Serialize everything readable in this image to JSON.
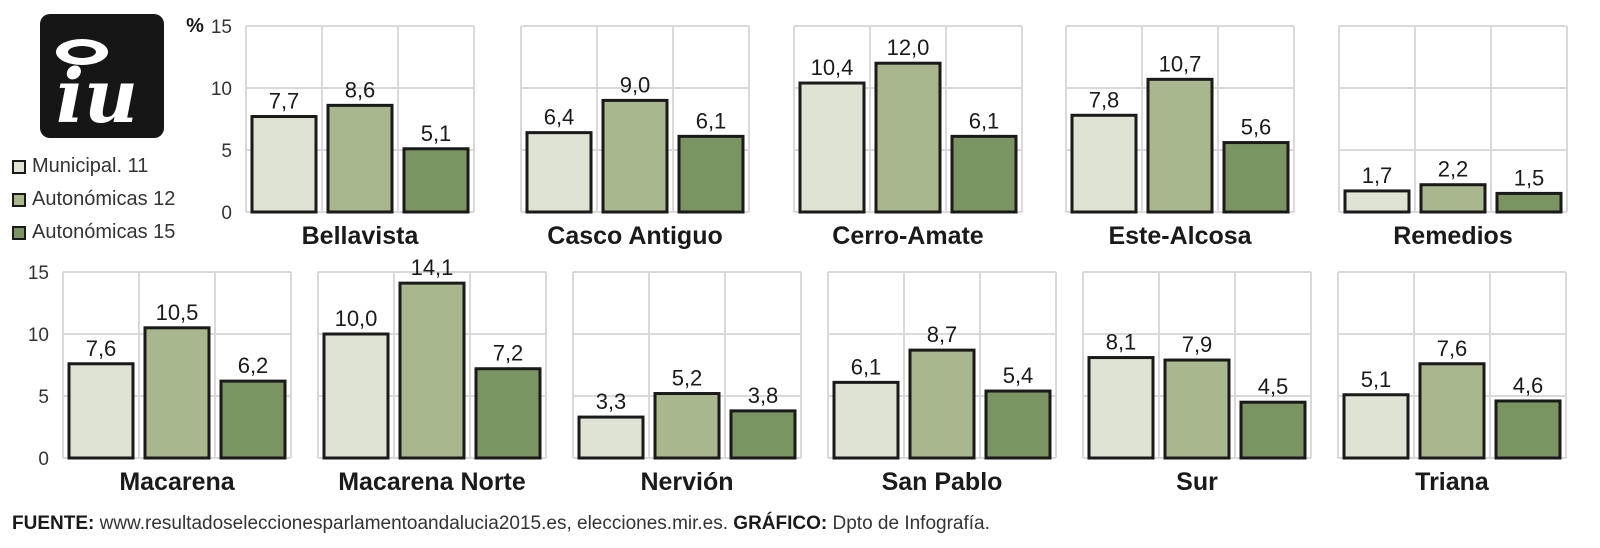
{
  "unit_label": "%",
  "logo_text": "iu",
  "colors": {
    "series": [
      "#dfe3d3",
      "#a9b78f",
      "#7a9462"
    ],
    "bar_border": "#1a1a1a",
    "grid": "#d9d9d9",
    "text": "#1a1a1a"
  },
  "legend": [
    {
      "label": "Municipal. 11",
      "color": "#dfe3d3"
    },
    {
      "label": "Autonómicas 12",
      "color": "#a9b78f"
    },
    {
      "label": "Autonómicas 15",
      "color": "#7a9462"
    }
  ],
  "footer": {
    "source_label": "FUENTE:",
    "source_text": " www.resultadoseleccionesparlamentoandalucia2015.es, elecciones.mir.es. ",
    "credit_label": "GRÁFICO:",
    "credit_text": " Dpto de Infografía."
  },
  "chart_data": {
    "type": "bar",
    "ylim": [
      0,
      15
    ],
    "yticks": [
      "0",
      "5",
      "10",
      "15"
    ],
    "ytick_values": [
      0,
      5,
      10,
      15
    ],
    "series_names": [
      "Municipal. 11",
      "Autonómicas 12",
      "Autonómicas 15"
    ],
    "panels": [
      {
        "name": "Bellavista",
        "values": [
          7.7,
          8.6,
          5.1
        ],
        "labels": [
          "7,7",
          "8,6",
          "5,1"
        ]
      },
      {
        "name": "Casco Antiguo",
        "values": [
          6.4,
          9.0,
          6.1
        ],
        "labels": [
          "6,4",
          "9,0",
          "6,1"
        ]
      },
      {
        "name": "Cerro-Amate",
        "values": [
          10.4,
          12.0,
          6.1
        ],
        "labels": [
          "10,4",
          "12,0",
          "6,1"
        ]
      },
      {
        "name": "Este-Alcosa",
        "values": [
          7.8,
          10.7,
          5.6
        ],
        "labels": [
          "7,8",
          "10,7",
          "5,6"
        ]
      },
      {
        "name": "Remedios",
        "values": [
          1.7,
          2.2,
          1.5
        ],
        "labels": [
          "1,7",
          "2,2",
          "1,5"
        ]
      },
      {
        "name": "Macarena",
        "values": [
          7.6,
          10.5,
          6.2
        ],
        "labels": [
          "7,6",
          "10,5",
          "6,2"
        ]
      },
      {
        "name": "Macarena Norte",
        "values": [
          10.0,
          14.1,
          7.2
        ],
        "labels": [
          "10,0",
          "14,1",
          "7,2"
        ]
      },
      {
        "name": "Nervión",
        "values": [
          3.3,
          5.2,
          3.8
        ],
        "labels": [
          "3,3",
          "5,2",
          "3,8"
        ]
      },
      {
        "name": "San Pablo",
        "values": [
          6.1,
          8.7,
          5.4
        ],
        "labels": [
          "6,1",
          "8,7",
          "5,4"
        ]
      },
      {
        "name": "Sur",
        "values": [
          8.1,
          7.9,
          4.5
        ],
        "labels": [
          "8,1",
          "7,9",
          "4,5"
        ]
      },
      {
        "name": "Triana",
        "values": [
          5.1,
          7.6,
          4.6
        ],
        "labels": [
          "5,1",
          "7,6",
          "4,6"
        ]
      }
    ]
  }
}
